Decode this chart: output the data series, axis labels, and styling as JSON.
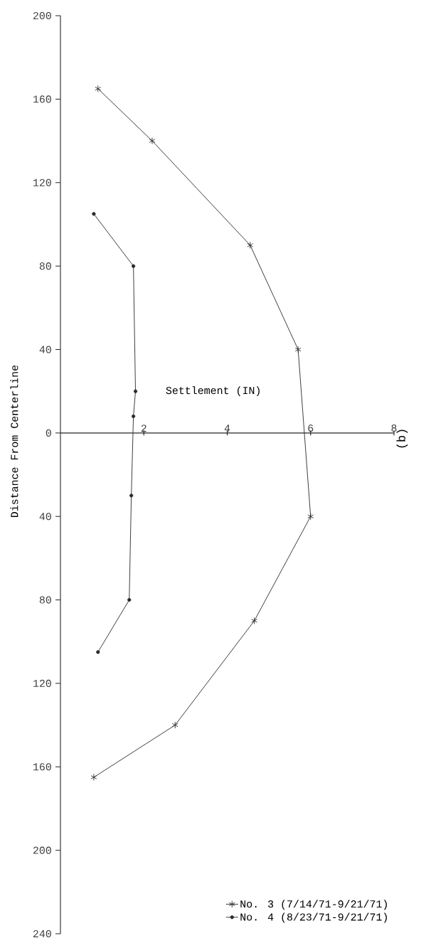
{
  "chart_data": {
    "type": "line",
    "xlabel": "Settlement (IN)",
    "ylabel": "Distance From Centerline",
    "xlim": [
      0,
      8
    ],
    "ylim": [
      -240,
      200
    ],
    "xticks": [
      {
        "value": 2,
        "label": "2"
      },
      {
        "value": 4,
        "label": "4"
      },
      {
        "value": 6,
        "label": "6"
      },
      {
        "value": 8,
        "label": "8"
      }
    ],
    "yticks": [
      {
        "value": -240,
        "label": "240"
      },
      {
        "value": -200,
        "label": "200"
      },
      {
        "value": -160,
        "label": "160"
      },
      {
        "value": -120,
        "label": "120"
      },
      {
        "value": -80,
        "label": "80"
      },
      {
        "value": -40,
        "label": "40"
      },
      {
        "value": 0,
        "label": "0"
      },
      {
        "value": 40,
        "label": "40"
      },
      {
        "value": 80,
        "label": "80"
      },
      {
        "value": 120,
        "label": "120"
      },
      {
        "value": 160,
        "label": "160"
      },
      {
        "value": 200,
        "label": "200"
      }
    ],
    "legend": "bottom right",
    "series": [
      {
        "name": "No. 3 (7/14/71-9/21/71)",
        "color": "#2e2826",
        "marker": "cross",
        "x": [
          0.8,
          2.75,
          4.65,
          6.0,
          5.7,
          4.55,
          2.2,
          0.9
        ],
        "values": [
          -165,
          -140,
          -90,
          -40,
          40,
          90,
          140,
          165
        ]
      },
      {
        "name": "No. 4 (8/23/71-9/21/71)",
        "color": "#2e2826",
        "marker": "circle",
        "x": [
          0.9,
          1.65,
          1.7,
          1.75,
          1.8,
          1.75,
          0.8
        ],
        "values": [
          -105,
          -80,
          -30,
          8,
          20,
          80,
          105
        ]
      }
    ],
    "annotations": [
      "(b)"
    ]
  }
}
